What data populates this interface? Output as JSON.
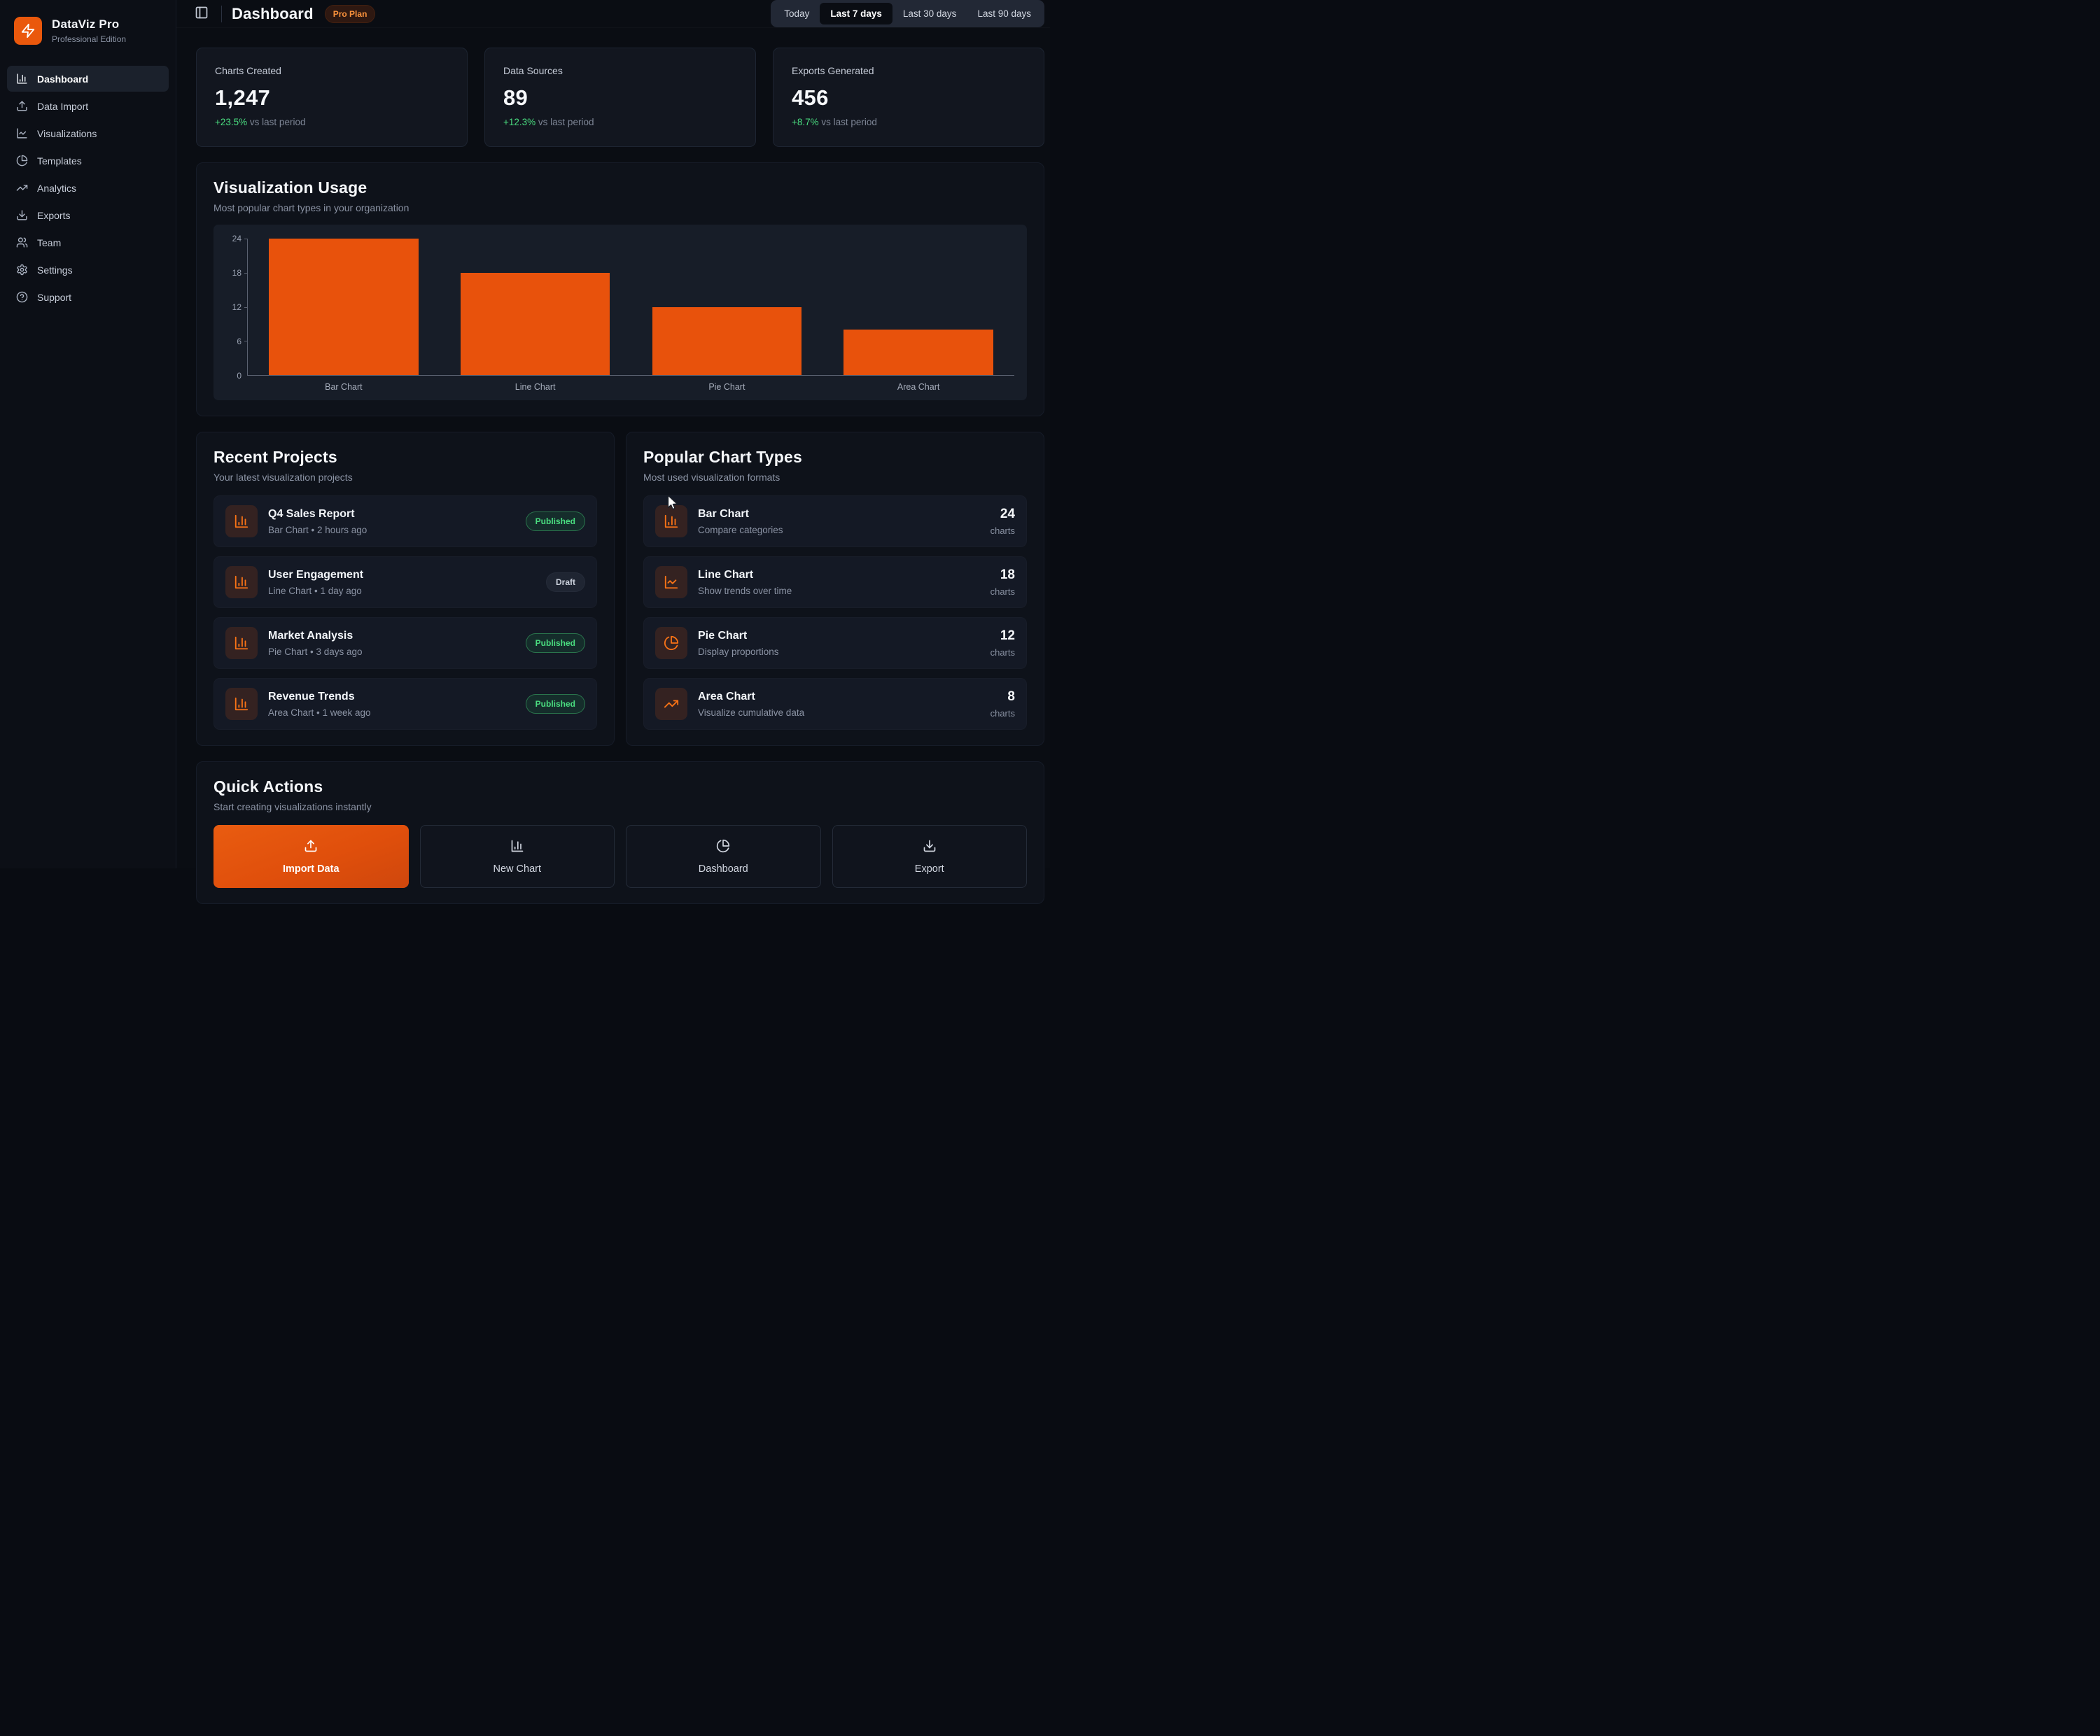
{
  "app": {
    "name": "DataViz Pro",
    "edition": "Professional Edition"
  },
  "sidebar": {
    "items": [
      {
        "label": "Dashboard",
        "icon": "bar-chart-icon",
        "active": true
      },
      {
        "label": "Data Import",
        "icon": "upload-icon",
        "active": false
      },
      {
        "label": "Visualizations",
        "icon": "line-chart-icon",
        "active": false
      },
      {
        "label": "Templates",
        "icon": "pie-chart-icon",
        "active": false
      },
      {
        "label": "Analytics",
        "icon": "trending-up-icon",
        "active": false
      },
      {
        "label": "Exports",
        "icon": "download-icon",
        "active": false
      },
      {
        "label": "Team",
        "icon": "users-icon",
        "active": false
      },
      {
        "label": "Settings",
        "icon": "gear-icon",
        "active": false
      },
      {
        "label": "Support",
        "icon": "help-circle-icon",
        "active": false
      }
    ]
  },
  "header": {
    "title": "Dashboard",
    "plan_badge": "Pro Plan",
    "ranges": [
      "Today",
      "Last 7 days",
      "Last 30 days",
      "Last 90 days"
    ],
    "active_range": "Last 7 days"
  },
  "stats": [
    {
      "label": "Charts Created",
      "value": "1,247",
      "delta": "+23.5%",
      "note": " vs last period"
    },
    {
      "label": "Data Sources",
      "value": "89",
      "delta": "+12.3%",
      "note": " vs last period"
    },
    {
      "label": "Exports Generated",
      "value": "456",
      "delta": "+8.7%",
      "note": " vs last period"
    }
  ],
  "usage": {
    "title": "Visualization Usage",
    "subtitle": "Most popular chart types in your organization"
  },
  "chart_data": {
    "type": "bar",
    "title": "Visualization Usage",
    "categories": [
      "Bar Chart",
      "Line Chart",
      "Pie Chart",
      "Area Chart"
    ],
    "values": [
      24,
      18,
      12,
      8
    ],
    "yticks": [
      24,
      18,
      12,
      6,
      0
    ],
    "ylim": [
      0,
      24
    ],
    "xlabel": "",
    "ylabel": "",
    "grid": false,
    "legend": false,
    "bar_color": "#e8520c"
  },
  "recent": {
    "title": "Recent Projects",
    "subtitle": "Your latest visualization projects",
    "projects": [
      {
        "name": "Q4 Sales Report",
        "meta": "Bar Chart • 2 hours ago",
        "status": "Published"
      },
      {
        "name": "User Engagement",
        "meta": "Line Chart • 1 day ago",
        "status": "Draft"
      },
      {
        "name": "Market Analysis",
        "meta": "Pie Chart • 3 days ago",
        "status": "Published"
      },
      {
        "name": "Revenue Trends",
        "meta": "Area Chart • 1 week ago",
        "status": "Published"
      }
    ]
  },
  "popular": {
    "title": "Popular Chart Types",
    "subtitle": "Most used visualization formats",
    "items": [
      {
        "name": "Bar Chart",
        "desc": "Compare categories",
        "count": 24,
        "unit": "charts",
        "icon": "bar-chart-icon"
      },
      {
        "name": "Line Chart",
        "desc": "Show trends over time",
        "count": 18,
        "unit": "charts",
        "icon": "line-chart-icon"
      },
      {
        "name": "Pie Chart",
        "desc": "Display proportions",
        "count": 12,
        "unit": "charts",
        "icon": "pie-chart-icon"
      },
      {
        "name": "Area Chart",
        "desc": "Visualize cumulative data",
        "count": 8,
        "unit": "charts",
        "icon": "trending-up-icon"
      }
    ]
  },
  "quick": {
    "title": "Quick Actions",
    "subtitle": "Start creating visualizations instantly",
    "actions": [
      {
        "label": "Import Data",
        "icon": "upload-icon",
        "primary": true
      },
      {
        "label": "New Chart",
        "icon": "bar-chart-icon",
        "primary": false
      },
      {
        "label": "Dashboard",
        "icon": "pie-chart-icon",
        "primary": false
      },
      {
        "label": "Export",
        "icon": "download-icon",
        "primary": false
      }
    ]
  },
  "colors": {
    "accent": "#ea580c",
    "positive": "#4ade80",
    "bar": "#e8520c"
  }
}
